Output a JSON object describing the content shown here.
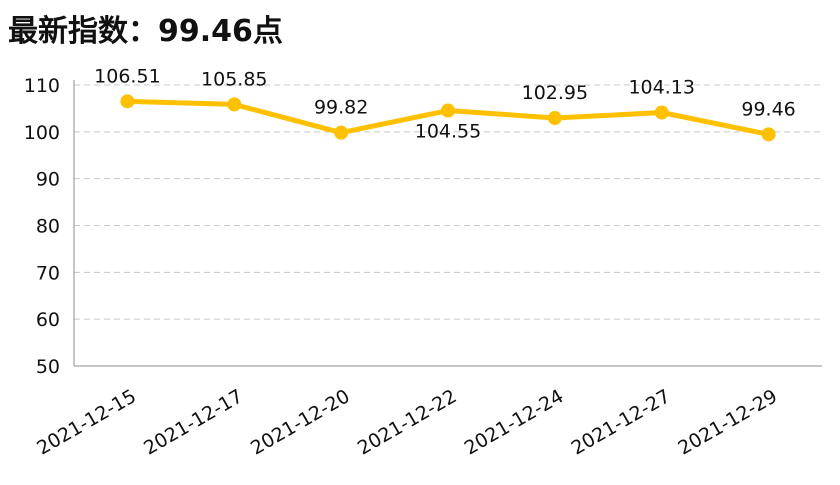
{
  "chart_data": {
    "type": "line",
    "title": "最新指数：99.46点",
    "categories": [
      "2021-12-15",
      "2021-12-17",
      "2021-12-20",
      "2021-12-22",
      "2021-12-24",
      "2021-12-27",
      "2021-12-29"
    ],
    "series": [
      {
        "values": [
          106.51,
          105.85,
          99.82,
          104.55,
          102.95,
          104.13,
          99.46
        ]
      }
    ],
    "data_labels": [
      "106.51",
      "105.85",
      "99.82",
      "104.55",
      "102.95",
      "104.13",
      "99.46"
    ],
    "ylim": [
      50,
      110
    ],
    "yticks": [
      50,
      60,
      70,
      80,
      90,
      100,
      110
    ],
    "xlabel": "",
    "ylabel": "",
    "grid": true,
    "line_color": "#FFC000",
    "grid_color": "#C8C8C8"
  }
}
